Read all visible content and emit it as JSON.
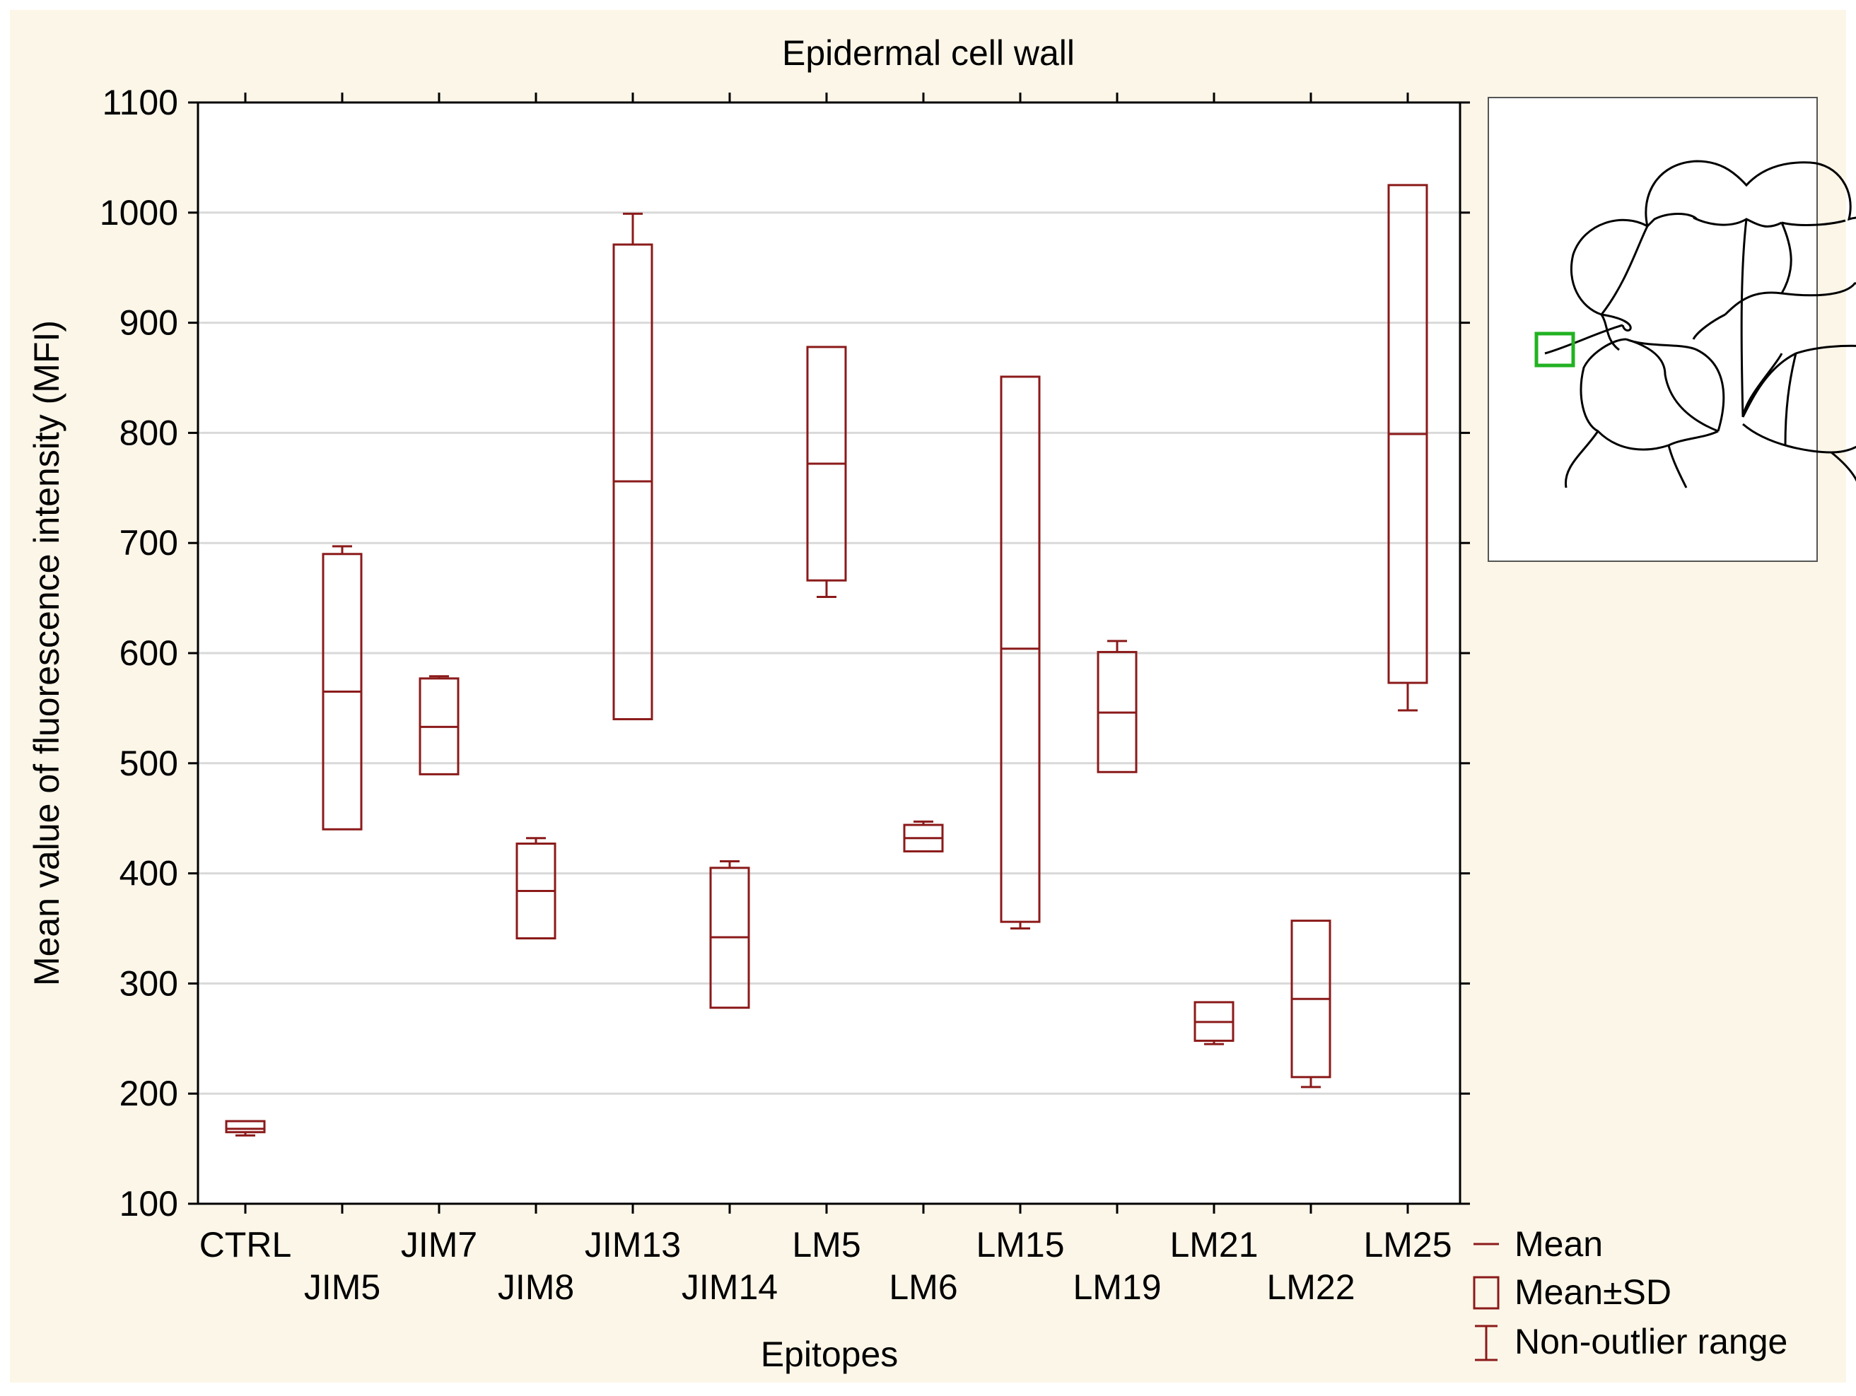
{
  "colors": {
    "frame": "#fcf6e8",
    "plot_bg": "#ffffff",
    "series": "#8b1a1a",
    "grid": "#d9d9d9",
    "axis": "#000000",
    "highlight_box": "#22b222"
  },
  "chart_data": {
    "type": "box",
    "title": "Epidermal cell wall",
    "xlabel": "Epitopes",
    "ylabel": "Mean value of fluorescence intensity (MFI)",
    "ylim": [
      100,
      1100
    ],
    "yticks": [
      100,
      200,
      300,
      400,
      500,
      600,
      700,
      800,
      900,
      1000,
      1100
    ],
    "grid": true,
    "legend_position": "bottom-right",
    "categories": [
      "CTRL",
      "JIM5",
      "JIM7",
      "JIM8",
      "JIM13",
      "JIM14",
      "LM5",
      "LM6",
      "LM15",
      "LM19",
      "LM21",
      "LM22",
      "LM25"
    ],
    "series": [
      {
        "stats": [
          {
            "mean": 168,
            "sd_low": 165,
            "sd_high": 175,
            "min": 162,
            "max": 175
          },
          {
            "mean": 565,
            "sd_low": 440,
            "sd_high": 690,
            "min": 440,
            "max": 697
          },
          {
            "mean": 533,
            "sd_low": 490,
            "sd_high": 577,
            "min": 490,
            "max": 579
          },
          {
            "mean": 384,
            "sd_low": 341,
            "sd_high": 427,
            "min": 341,
            "max": 432
          },
          {
            "mean": 756,
            "sd_low": 540,
            "sd_high": 971,
            "min": 540,
            "max": 999
          },
          {
            "mean": 342,
            "sd_low": 278,
            "sd_high": 405,
            "min": 278,
            "max": 411
          },
          {
            "mean": 772,
            "sd_low": 666,
            "sd_high": 878,
            "min": 651,
            "max": 878
          },
          {
            "mean": 432,
            "sd_low": 420,
            "sd_high": 444,
            "min": 420,
            "max": 447
          },
          {
            "mean": 604,
            "sd_low": 356,
            "sd_high": 851,
            "min": 350,
            "max": 851
          },
          {
            "mean": 546,
            "sd_low": 492,
            "sd_high": 601,
            "min": 492,
            "max": 611
          },
          {
            "mean": 265,
            "sd_low": 248,
            "sd_high": 283,
            "min": 245,
            "max": 283
          },
          {
            "mean": 286,
            "sd_low": 215,
            "sd_high": 357,
            "min": 206,
            "max": 357
          },
          {
            "mean": 799,
            "sd_low": 573,
            "sd_high": 1025,
            "min": 548,
            "max": 1025
          }
        ]
      }
    ],
    "legend": [
      "Mean",
      "Mean±SD",
      "Non-outlier range"
    ]
  }
}
